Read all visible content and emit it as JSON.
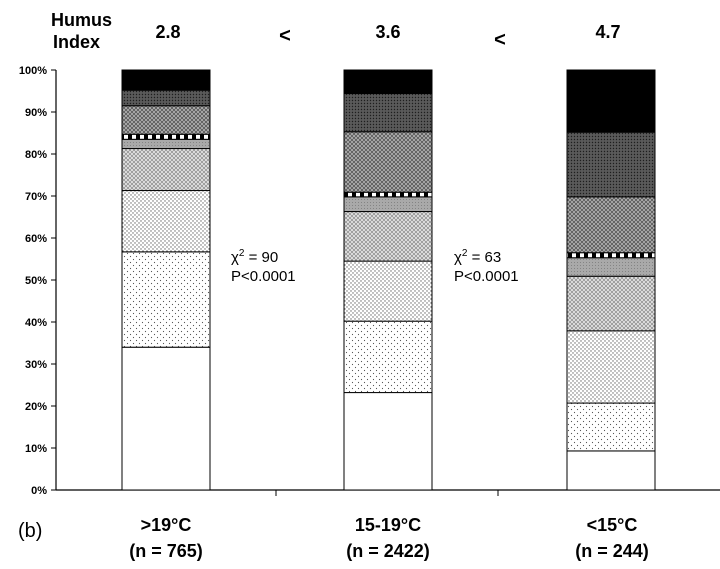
{
  "chart_data": {
    "type": "bar",
    "stacked": true,
    "panel_label": "(b)",
    "header_label": [
      "Humus",
      "Index"
    ],
    "comparison_symbols": [
      "<",
      "<"
    ],
    "ylim": [
      0,
      100
    ],
    "yticks": [
      "0%",
      "10%",
      "20%",
      "30%",
      "40%",
      "50%",
      "60%",
      "70%",
      "80%",
      "90%",
      "100%"
    ],
    "categories": [
      {
        "label": ">19°C",
        "n_label": "(n = 765)",
        "humus_index": "2.8",
        "segments": [
          34,
          22.7,
          14.6,
          10,
          2.2,
          1.2,
          6.8,
          3.7,
          4.8
        ]
      },
      {
        "label": "15-19°C",
        "n_label": "(n = 2422)",
        "humus_index": "3.6",
        "segments": [
          23.2,
          17,
          14.3,
          11.8,
          3.5,
          1.1,
          14.4,
          9.1,
          5.6
        ]
      },
      {
        "label": "<15°C",
        "n_label": "(n = 244)",
        "humus_index": "4.7",
        "segments": [
          9.3,
          11.4,
          17.2,
          13,
          4.4,
          1.2,
          13.3,
          15.4,
          14.8
        ]
      }
    ],
    "segment_patterns": [
      "white",
      "dots-sparse",
      "dots-medium",
      "crosshatch-light",
      "grey",
      "dashed-band",
      "crosshatch-medium",
      "dots-dense",
      "black"
    ],
    "annotations": [
      {
        "chi": "χ",
        "sup": "2",
        "value": " = 90",
        "p": "P<0.0001"
      },
      {
        "chi": "χ",
        "sup": "2",
        "value": " = 63",
        "p": "P<0.0001"
      }
    ]
  }
}
